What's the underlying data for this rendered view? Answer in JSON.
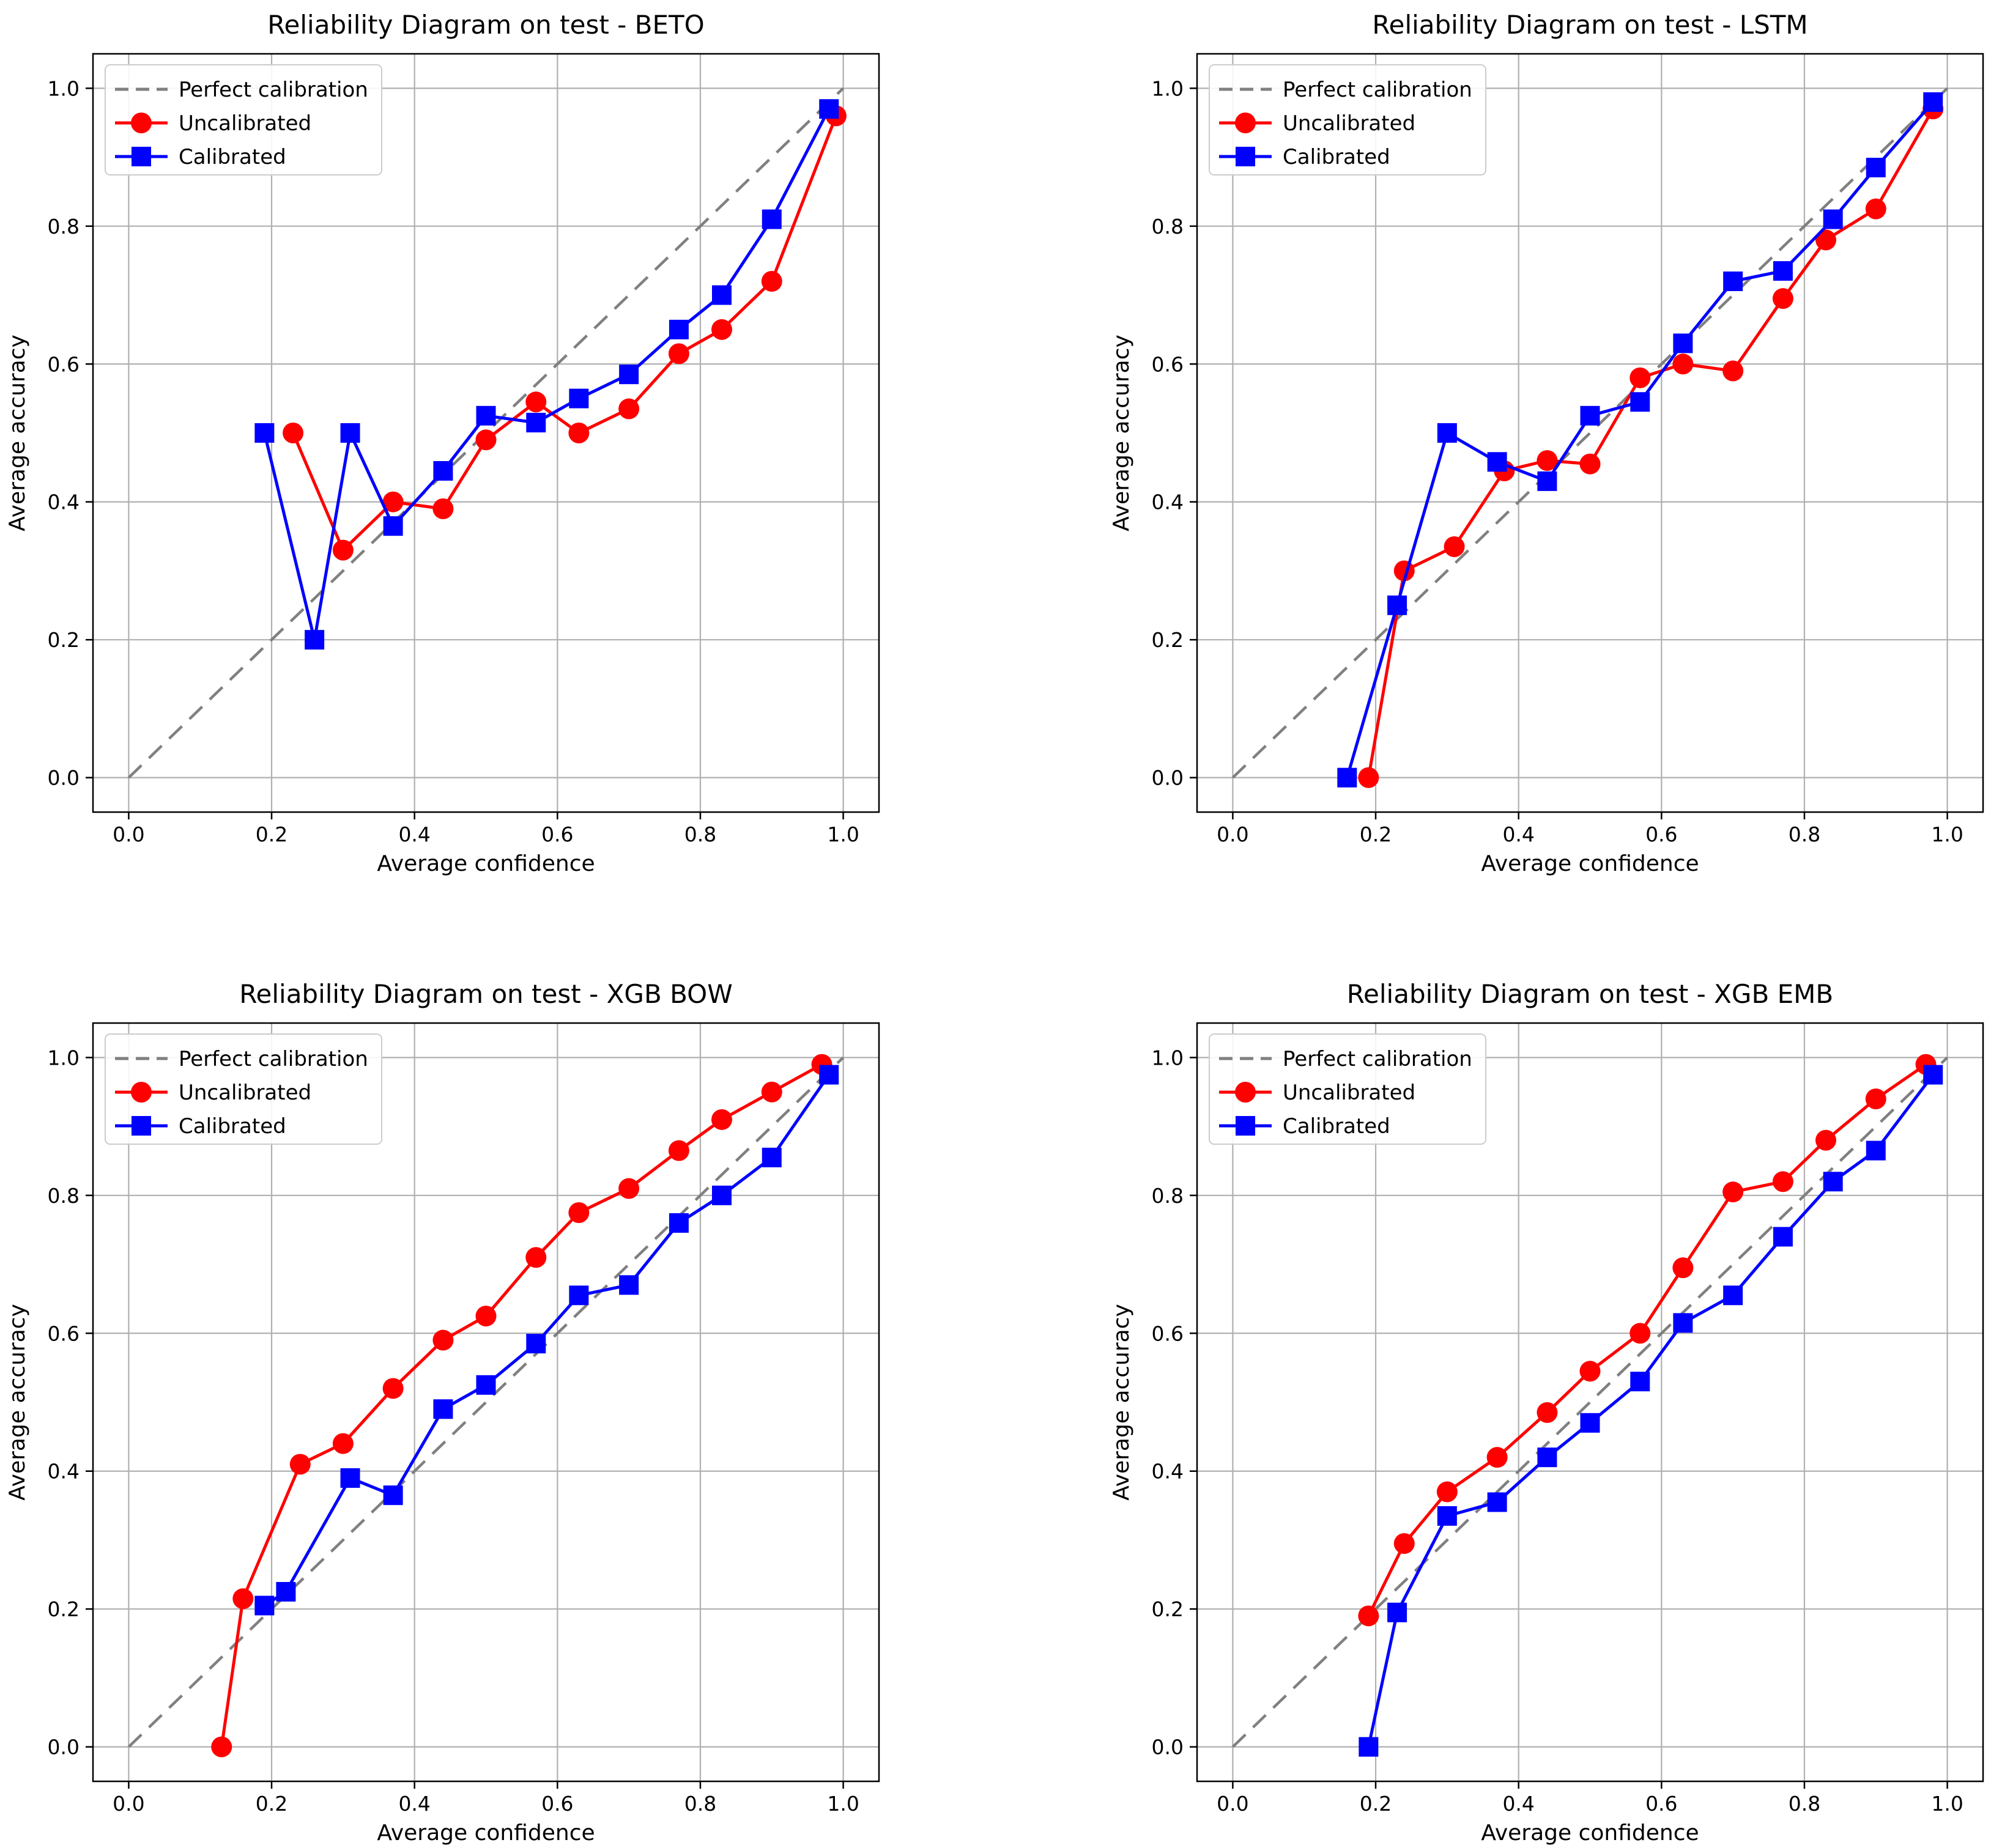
{
  "figure": {
    "background": "#ffffff",
    "colors": {
      "uncalibrated": "#ff0000",
      "calibrated": "#0000ff",
      "perfect": "#808080",
      "grid": "#b0b0b0",
      "spine": "#000000",
      "text": "#000000",
      "legend_border": "#cccccc",
      "legend_fill": "#ffffff"
    },
    "legend": {
      "position": "upper left",
      "entries": [
        "Perfect calibration",
        "Uncalibrated",
        "Calibrated"
      ]
    }
  },
  "chart_data": [
    {
      "type": "line",
      "title": "Reliability Diagram on test - BETO",
      "xlabel": "Average confidence",
      "ylabel": "Average accuracy",
      "xlim": [
        -0.05,
        1.05
      ],
      "ylim": [
        -0.05,
        1.05
      ],
      "grid": true,
      "legend_position": "upper left",
      "xticks": [
        0.0,
        0.2,
        0.4,
        0.6,
        0.8,
        1.0
      ],
      "xtick_labels": [
        "0.0",
        "0.2",
        "0.4",
        "0.6",
        "0.8",
        "1.0"
      ],
      "yticks": [
        0.0,
        0.2,
        0.4,
        0.6,
        0.8,
        1.0
      ],
      "ytick_labels": [
        "0.0",
        "0.2",
        "0.4",
        "0.6",
        "0.8",
        "1.0"
      ],
      "diagonal": {
        "label": "Perfect calibration",
        "color": "#808080"
      },
      "series": [
        {
          "name": "Uncalibrated",
          "color": "#ff0000",
          "marker": "circle",
          "x": [
            0.23,
            0.3,
            0.37,
            0.44,
            0.5,
            0.57,
            0.63,
            0.7,
            0.77,
            0.83,
            0.9,
            0.99
          ],
          "y": [
            0.5,
            0.33,
            0.4,
            0.39,
            0.49,
            0.545,
            0.5,
            0.535,
            0.615,
            0.65,
            0.72,
            0.96
          ]
        },
        {
          "name": "Calibrated",
          "color": "#0000ff",
          "marker": "square",
          "x": [
            0.19,
            0.26,
            0.31,
            0.37,
            0.44,
            0.5,
            0.57,
            0.63,
            0.7,
            0.77,
            0.83,
            0.9,
            0.98
          ],
          "y": [
            0.5,
            0.2,
            0.5,
            0.365,
            0.445,
            0.525,
            0.515,
            0.55,
            0.585,
            0.65,
            0.7,
            0.81,
            0.97
          ]
        }
      ]
    },
    {
      "type": "line",
      "title": "Reliability Diagram on test - LSTM",
      "xlabel": "Average confidence",
      "ylabel": "Average accuracy",
      "xlim": [
        -0.05,
        1.05
      ],
      "ylim": [
        -0.05,
        1.05
      ],
      "grid": true,
      "legend_position": "upper left",
      "xticks": [
        0.0,
        0.2,
        0.4,
        0.6,
        0.8,
        1.0
      ],
      "xtick_labels": [
        "0.0",
        "0.2",
        "0.4",
        "0.6",
        "0.8",
        "1.0"
      ],
      "yticks": [
        0.0,
        0.2,
        0.4,
        0.6,
        0.8,
        1.0
      ],
      "ytick_labels": [
        "0.0",
        "0.2",
        "0.4",
        "0.6",
        "0.8",
        "1.0"
      ],
      "diagonal": {
        "label": "Perfect calibration",
        "color": "#808080"
      },
      "series": [
        {
          "name": "Uncalibrated",
          "color": "#ff0000",
          "marker": "circle",
          "x": [
            0.19,
            0.24,
            0.31,
            0.38,
            0.44,
            0.5,
            0.57,
            0.63,
            0.7,
            0.77,
            0.83,
            0.9,
            0.98
          ],
          "y": [
            0.0,
            0.3,
            0.335,
            0.445,
            0.46,
            0.455,
            0.58,
            0.6,
            0.59,
            0.695,
            0.78,
            0.825,
            0.97
          ]
        },
        {
          "name": "Calibrated",
          "color": "#0000ff",
          "marker": "square",
          "x": [
            0.16,
            0.23,
            0.3,
            0.37,
            0.44,
            0.5,
            0.57,
            0.63,
            0.7,
            0.77,
            0.84,
            0.9,
            0.98
          ],
          "y": [
            0.0,
            0.25,
            0.5,
            0.458,
            0.43,
            0.525,
            0.545,
            0.63,
            0.72,
            0.735,
            0.81,
            0.885,
            0.98
          ]
        }
      ]
    },
    {
      "type": "line",
      "title": "Reliability Diagram on test - XGB BOW",
      "xlabel": "Average confidence",
      "ylabel": "Average accuracy",
      "xlim": [
        -0.05,
        1.05
      ],
      "ylim": [
        -0.05,
        1.05
      ],
      "grid": true,
      "legend_position": "upper left",
      "xticks": [
        0.0,
        0.2,
        0.4,
        0.6,
        0.8,
        1.0
      ],
      "xtick_labels": [
        "0.0",
        "0.2",
        "0.4",
        "0.6",
        "0.8",
        "1.0"
      ],
      "yticks": [
        0.0,
        0.2,
        0.4,
        0.6,
        0.8,
        1.0
      ],
      "ytick_labels": [
        "0.0",
        "0.2",
        "0.4",
        "0.6",
        "0.8",
        "1.0"
      ],
      "diagonal": {
        "label": "Perfect calibration",
        "color": "#808080"
      },
      "series": [
        {
          "name": "Uncalibrated",
          "color": "#ff0000",
          "marker": "circle",
          "x": [
            0.13,
            0.16,
            0.24,
            0.3,
            0.37,
            0.44,
            0.5,
            0.57,
            0.63,
            0.7,
            0.77,
            0.83,
            0.9,
            0.97
          ],
          "y": [
            0.0,
            0.215,
            0.41,
            0.44,
            0.52,
            0.59,
            0.625,
            0.71,
            0.775,
            0.81,
            0.865,
            0.91,
            0.95,
            0.99
          ]
        },
        {
          "name": "Calibrated",
          "color": "#0000ff",
          "marker": "square",
          "x": [
            0.19,
            0.22,
            0.31,
            0.37,
            0.44,
            0.5,
            0.57,
            0.63,
            0.7,
            0.77,
            0.83,
            0.9,
            0.98
          ],
          "y": [
            0.205,
            0.225,
            0.39,
            0.365,
            0.49,
            0.525,
            0.585,
            0.655,
            0.67,
            0.76,
            0.8,
            0.855,
            0.975
          ]
        }
      ]
    },
    {
      "type": "line",
      "title": "Reliability Diagram on test - XGB EMB",
      "xlabel": "Average confidence",
      "ylabel": "Average accuracy",
      "xlim": [
        -0.05,
        1.05
      ],
      "ylim": [
        -0.05,
        1.05
      ],
      "grid": true,
      "legend_position": "upper left",
      "xticks": [
        0.0,
        0.2,
        0.4,
        0.6,
        0.8,
        1.0
      ],
      "xtick_labels": [
        "0.0",
        "0.2",
        "0.4",
        "0.6",
        "0.8",
        "1.0"
      ],
      "yticks": [
        0.0,
        0.2,
        0.4,
        0.6,
        0.8,
        1.0
      ],
      "ytick_labels": [
        "0.0",
        "0.2",
        "0.4",
        "0.6",
        "0.8",
        "1.0"
      ],
      "diagonal": {
        "label": "Perfect calibration",
        "color": "#808080"
      },
      "series": [
        {
          "name": "Uncalibrated",
          "color": "#ff0000",
          "marker": "circle",
          "x": [
            0.19,
            0.24,
            0.3,
            0.37,
            0.44,
            0.5,
            0.57,
            0.63,
            0.7,
            0.77,
            0.83,
            0.9,
            0.97
          ],
          "y": [
            0.19,
            0.295,
            0.37,
            0.42,
            0.485,
            0.545,
            0.6,
            0.695,
            0.805,
            0.82,
            0.88,
            0.94,
            0.99
          ]
        },
        {
          "name": "Calibrated",
          "color": "#0000ff",
          "marker": "square",
          "x": [
            0.19,
            0.23,
            0.3,
            0.37,
            0.44,
            0.5,
            0.57,
            0.63,
            0.7,
            0.77,
            0.84,
            0.9,
            0.98
          ],
          "y": [
            0.0,
            0.195,
            0.335,
            0.355,
            0.42,
            0.47,
            0.53,
            0.615,
            0.655,
            0.74,
            0.82,
            0.865,
            0.975
          ]
        }
      ]
    }
  ]
}
